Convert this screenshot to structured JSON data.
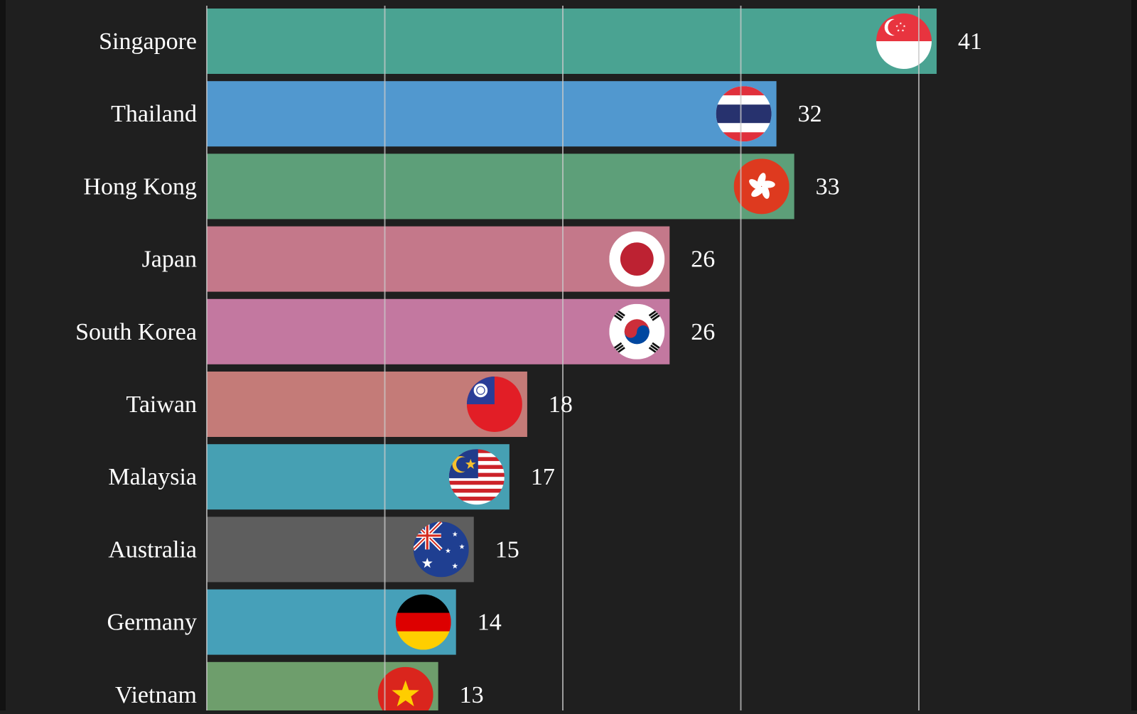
{
  "chart_data": {
    "type": "bar",
    "orientation": "horizontal",
    "grid": true,
    "xlim": [
      0,
      50
    ],
    "gridlines": [
      0,
      10,
      20,
      30,
      40
    ],
    "background": "#1f1f1f",
    "label_color": "#ffffff",
    "grid_color": "#c8c8c8",
    "series": [
      {
        "values": [
          {
            "label": "Singapore",
            "value": 41,
            "value_label": "41",
            "color": "#4aa392",
            "flag": "singapore-flag-icon"
          },
          {
            "label": "Thailand",
            "value": 32,
            "value_label": "32",
            "color": "#5198cf",
            "flag": "thailand-flag-icon"
          },
          {
            "label": "Hong Kong",
            "value": 33,
            "value_label": "33",
            "color": "#5d9f79",
            "flag": "hong-kong-flag-icon"
          },
          {
            "label": "Japan",
            "value": 26,
            "value_label": "26",
            "color": "#c4788a",
            "flag": "japan-flag-icon"
          },
          {
            "label": "South Korea",
            "value": 26,
            "value_label": "26",
            "color": "#c378a0",
            "flag": "south-korea-flag-icon"
          },
          {
            "label": "Taiwan",
            "value": 18,
            "value_label": "18",
            "color": "#c47b78",
            "flag": "taiwan-flag-icon"
          },
          {
            "label": "Malaysia",
            "value": 17,
            "value_label": "17",
            "color": "#46a0b3",
            "flag": "malaysia-flag-icon"
          },
          {
            "label": "Australia",
            "value": 15,
            "value_label": "15",
            "color": "#5e5e5e",
            "flag": "australia-flag-icon"
          },
          {
            "label": "Germany",
            "value": 14,
            "value_label": "14",
            "color": "#46a0b9",
            "flag": "germany-flag-icon"
          },
          {
            "label": "Vietnam",
            "value": 13,
            "value_label": "13",
            "color": "#6e9e6c",
            "flag": "vietnam-flag-icon"
          }
        ]
      }
    ]
  }
}
